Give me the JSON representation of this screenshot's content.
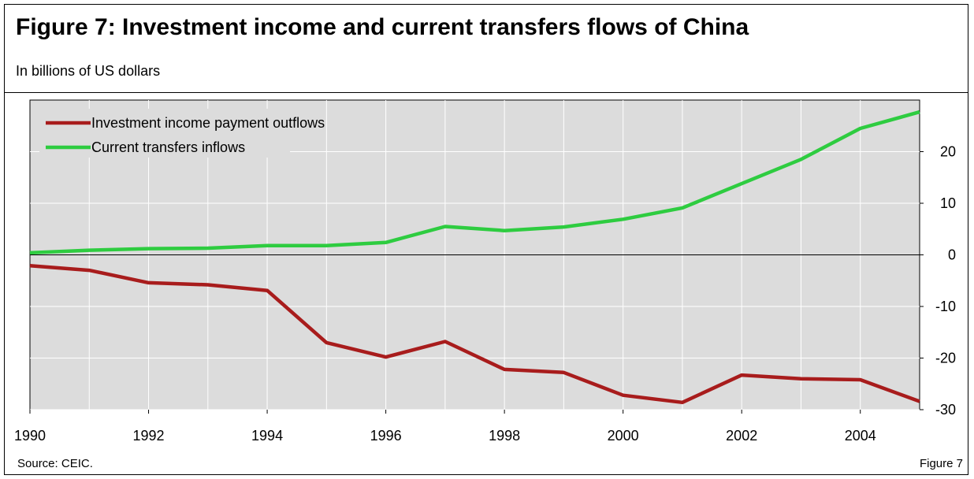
{
  "header": {
    "title": "Figure 7: Investment income and current transfers flows of China",
    "subtitle": "In billions of US dollars"
  },
  "footer": {
    "source": "Source: CEIC.",
    "figure_label": "Figure 7"
  },
  "colors": {
    "plot_background": "#dcdcdc",
    "grid": "#ffffff",
    "outflows": "#a81c1c",
    "inflows": "#2ecc40"
  },
  "chart_data": {
    "type": "line",
    "x": [
      1990,
      1991,
      1992,
      1993,
      1994,
      1995,
      1996,
      1997,
      1998,
      1999,
      2000,
      2001,
      2002,
      2003,
      2004,
      2005
    ],
    "x_ticks": [
      "1990",
      "1992",
      "1994",
      "1996",
      "1998",
      "2000",
      "2002",
      "2004"
    ],
    "xlim": [
      1990,
      2005
    ],
    "y_ticks": [
      "20",
      "10",
      "0",
      "-10",
      "-20",
      "-30"
    ],
    "ylim": [
      -30,
      30
    ],
    "y_axis_side": "right",
    "grid": true,
    "legend_position": "top-left",
    "series": [
      {
        "name": "Investment income payment outflows",
        "color": "#a81c1c",
        "values": [
          -2.1,
          -3.0,
          -5.4,
          -5.8,
          -6.9,
          -17.0,
          -19.8,
          -16.8,
          -22.2,
          -22.8,
          -27.2,
          -28.6,
          -23.3,
          -24.0,
          -24.2,
          -28.4
        ]
      },
      {
        "name": "Current transfers inflows",
        "color": "#2ecc40",
        "values": [
          0.4,
          0.9,
          1.2,
          1.3,
          1.8,
          1.8,
          2.4,
          5.5,
          4.7,
          5.4,
          6.9,
          9.1,
          13.8,
          18.5,
          24.5,
          27.7
        ]
      }
    ]
  }
}
